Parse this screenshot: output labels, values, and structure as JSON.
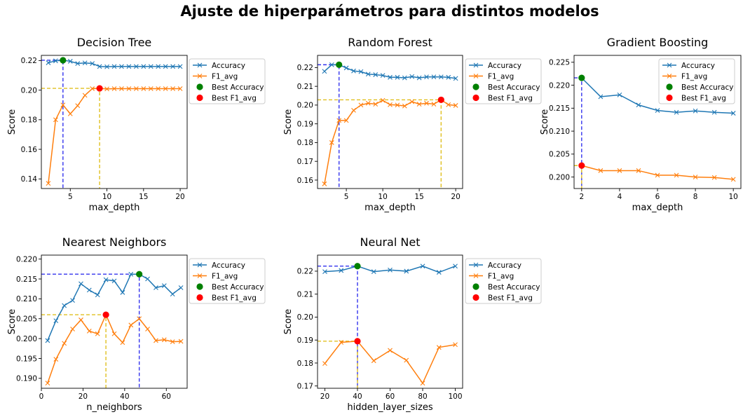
{
  "figure_title": "Ajuste de hiperparámetros para distintos modelos",
  "colors": {
    "accuracy": "#1f77b4",
    "f1": "#ff7f0e",
    "best_accuracy": "#008000",
    "best_f1": "#ff0000",
    "acc_guide": "#3333ee",
    "f1_guide": "#e0c020"
  },
  "chart_data": [
    {
      "type": "line",
      "title": "Decision Tree",
      "xlabel": "max_depth",
      "ylabel": "Score",
      "xlim": [
        1.05,
        20.95
      ],
      "ylim": [
        0.1335,
        0.2235
      ],
      "xticks": [
        5,
        10,
        15,
        20
      ],
      "yticks": [
        0.14,
        0.16,
        0.18,
        0.2,
        0.22
      ],
      "ytick_labels": [
        "0.14",
        "0.16",
        "0.18",
        "0.20",
        "0.22"
      ],
      "legend": [
        "Accuracy",
        "F1_avg",
        "Best Accuracy",
        "Best F1_avg"
      ],
      "legend_placement": "outside-right",
      "series": [
        {
          "name": "Accuracy",
          "x": [
            2,
            3,
            4,
            5,
            6,
            7,
            8,
            9,
            10,
            11,
            12,
            13,
            14,
            15,
            16,
            17,
            18,
            19,
            20
          ],
          "y": [
            0.2185,
            0.2198,
            0.2202,
            0.2195,
            0.218,
            0.2184,
            0.218,
            0.216,
            0.2158,
            0.216,
            0.216,
            0.216,
            0.216,
            0.216,
            0.216,
            0.216,
            0.216,
            0.216,
            0.216
          ]
        },
        {
          "name": "F1_avg",
          "x": [
            2,
            3,
            4,
            5,
            6,
            7,
            8,
            9,
            10,
            11,
            12,
            13,
            14,
            15,
            16,
            17,
            18,
            19,
            20
          ],
          "y": [
            0.137,
            0.18,
            0.19,
            0.184,
            0.1895,
            0.1965,
            0.201,
            0.2012,
            0.2008,
            0.201,
            0.201,
            0.201,
            0.201,
            0.201,
            0.201,
            0.201,
            0.201,
            0.201,
            0.201
          ]
        }
      ],
      "best_accuracy": {
        "x": 4,
        "y": 0.2202
      },
      "best_f1": {
        "x": 9,
        "y": 0.2012
      }
    },
    {
      "type": "line",
      "title": "Random Forest",
      "xlabel": "max_depth",
      "ylabel": "Score",
      "xlim": [
        1.05,
        20.95
      ],
      "ylim": [
        0.1555,
        0.2265
      ],
      "xticks": [
        5,
        10,
        15,
        20
      ],
      "yticks": [
        0.16,
        0.17,
        0.18,
        0.19,
        0.2,
        0.21,
        0.22
      ],
      "ytick_labels": [
        "0.16",
        "0.17",
        "0.18",
        "0.19",
        "0.20",
        "0.21",
        "0.22"
      ],
      "legend": [
        "Accuracy",
        "F1_avg",
        "Best Accuracy",
        "Best F1_avg"
      ],
      "legend_placement": "outside-right",
      "series": [
        {
          "name": "Accuracy",
          "x": [
            2,
            3,
            4,
            5,
            6,
            7,
            8,
            9,
            10,
            11,
            12,
            13,
            14,
            15,
            16,
            17,
            18,
            19,
            20
          ],
          "y": [
            0.218,
            0.2215,
            0.2215,
            0.2198,
            0.2182,
            0.2178,
            0.2165,
            0.2162,
            0.2158,
            0.2148,
            0.2148,
            0.2145,
            0.2152,
            0.2145,
            0.215,
            0.215,
            0.215,
            0.2148,
            0.2142
          ]
        },
        {
          "name": "F1_avg",
          "x": [
            2,
            3,
            4,
            5,
            6,
            7,
            8,
            9,
            10,
            11,
            12,
            13,
            14,
            15,
            16,
            17,
            18,
            19,
            20
          ],
          "y": [
            0.158,
            0.18,
            0.1918,
            0.1918,
            0.1972,
            0.2,
            0.201,
            0.2005,
            0.2025,
            0.2002,
            0.2,
            0.1995,
            0.2018,
            0.2005,
            0.201,
            0.2005,
            0.2028,
            0.2002,
            0.1998
          ]
        }
      ],
      "best_accuracy": {
        "x": 4,
        "y": 0.2215
      },
      "best_f1": {
        "x": 18,
        "y": 0.2028
      }
    },
    {
      "type": "line",
      "title": "Gradient Boosting",
      "xlabel": "max_depth",
      "ylabel": "Score",
      "xlim": [
        1.6,
        10.4
      ],
      "ylim": [
        0.1975,
        0.2265
      ],
      "xticks": [
        2,
        4,
        6,
        8,
        10
      ],
      "yticks": [
        0.2,
        0.205,
        0.21,
        0.215,
        0.22,
        0.225
      ],
      "ytick_labels": [
        "0.200",
        "0.205",
        "0.210",
        "0.215",
        "0.220",
        "0.225"
      ],
      "legend": [
        "Accuracy",
        "F1_avg",
        "Best Accuracy",
        "Best F1_avg"
      ],
      "legend_placement": "upper-right",
      "series": [
        {
          "name": "Accuracy",
          "x": [
            2,
            3,
            4,
            5,
            6,
            7,
            8,
            9,
            10
          ],
          "y": [
            0.2216,
            0.2175,
            0.2179,
            0.2157,
            0.2145,
            0.2141,
            0.2144,
            0.2141,
            0.2139
          ]
        },
        {
          "name": "F1_avg",
          "x": [
            2,
            3,
            4,
            5,
            6,
            7,
            8,
            9,
            10
          ],
          "y": [
            0.2025,
            0.2014,
            0.2014,
            0.2014,
            0.2004,
            0.2004,
            0.2,
            0.1999,
            0.1995
          ]
        }
      ],
      "best_accuracy": {
        "x": 2,
        "y": 0.2216
      },
      "best_f1": {
        "x": 2,
        "y": 0.2025
      }
    },
    {
      "type": "line",
      "title": "Nearest Neighbors",
      "xlabel": "n_neighbors",
      "ylabel": "Score",
      "xlim": [
        0,
        70
      ],
      "ylim": [
        0.1875,
        0.221
      ],
      "xticks": [
        0,
        20,
        40,
        60
      ],
      "yticks": [
        0.19,
        0.195,
        0.2,
        0.205,
        0.21,
        0.215,
        0.22
      ],
      "ytick_labels": [
        "0.190",
        "0.195",
        "0.200",
        "0.205",
        "0.210",
        "0.215",
        "0.220"
      ],
      "legend": [
        "Accuracy",
        "F1_avg",
        "Best Accuracy",
        "Best F1_avg"
      ],
      "legend_placement": "outside-right",
      "series": [
        {
          "name": "Accuracy",
          "x": [
            3,
            7,
            11,
            15,
            19,
            23,
            27,
            31,
            35,
            39,
            43,
            47,
            51,
            55,
            59,
            63,
            67
          ],
          "y": [
            0.1995,
            0.2045,
            0.2083,
            0.2096,
            0.2138,
            0.2122,
            0.211,
            0.2148,
            0.2145,
            0.2116,
            0.2162,
            0.2162,
            0.215,
            0.2128,
            0.2133,
            0.2112,
            0.2128
          ]
        },
        {
          "name": "F1_avg",
          "x": [
            3,
            7,
            11,
            15,
            19,
            23,
            27,
            31,
            35,
            39,
            43,
            47,
            51,
            55,
            59,
            63,
            67
          ],
          "y": [
            0.1888,
            0.1948,
            0.1988,
            0.2024,
            0.2047,
            0.2019,
            0.2012,
            0.206,
            0.2012,
            0.199,
            0.2034,
            0.205,
            0.2024,
            0.1995,
            0.1997,
            0.1992,
            0.1993
          ]
        }
      ],
      "best_accuracy": {
        "x": 47,
        "y": 0.2162
      },
      "best_f1": {
        "x": 31,
        "y": 0.206
      }
    },
    {
      "type": "line",
      "title": "Neural Net",
      "xlabel": "hidden_layer_sizes",
      "ylabel": "Score",
      "xlim": [
        15.5,
        104.5
      ],
      "ylim": [
        0.169,
        0.227
      ],
      "xticks": [
        20,
        40,
        60,
        80,
        100
      ],
      "yticks": [
        0.17,
        0.18,
        0.19,
        0.2,
        0.21,
        0.22
      ],
      "ytick_labels": [
        "0.17",
        "0.18",
        "0.19",
        "0.20",
        "0.21",
        "0.22"
      ],
      "legend": [
        "Accuracy",
        "F1_avg",
        "Best Accuracy",
        "Best F1_avg"
      ],
      "legend_placement": "outside-right",
      "series": [
        {
          "name": "Accuracy",
          "x": [
            20,
            30,
            40,
            50,
            60,
            70,
            80,
            90,
            100
          ],
          "y": [
            0.2198,
            0.2203,
            0.2222,
            0.2198,
            0.2205,
            0.22,
            0.2222,
            0.2195,
            0.2222
          ]
        },
        {
          "name": "F1_avg",
          "x": [
            20,
            30,
            40,
            50,
            60,
            70,
            80,
            90,
            100
          ],
          "y": [
            0.1798,
            0.189,
            0.1895,
            0.181,
            0.1855,
            0.1812,
            0.1712,
            0.1868,
            0.188
          ]
        }
      ],
      "best_accuracy": {
        "x": 40,
        "y": 0.2222
      },
      "best_f1": {
        "x": 40,
        "y": 0.1895
      }
    }
  ]
}
